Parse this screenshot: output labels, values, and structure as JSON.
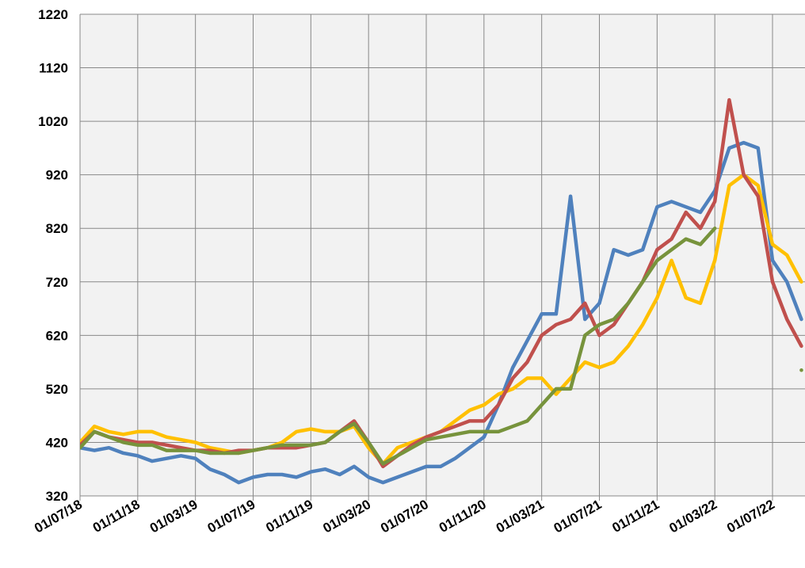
{
  "chart_data": {
    "type": "line",
    "x": [
      "01/07/18",
      "01/08/18",
      "01/09/18",
      "01/10/18",
      "01/11/18",
      "01/12/18",
      "01/01/19",
      "01/02/19",
      "01/03/19",
      "01/04/19",
      "01/05/19",
      "01/06/19",
      "01/07/19",
      "01/08/19",
      "01/09/19",
      "01/10/19",
      "01/11/19",
      "01/12/19",
      "01/01/20",
      "01/02/20",
      "01/03/20",
      "01/04/20",
      "01/05/20",
      "01/06/20",
      "01/07/20",
      "01/08/20",
      "01/09/20",
      "01/10/20",
      "01/11/20",
      "01/12/20",
      "01/01/21",
      "01/02/21",
      "01/03/21",
      "01/04/21",
      "01/05/21",
      "01/06/21",
      "01/07/21",
      "01/08/21",
      "01/09/21",
      "01/10/21",
      "01/11/21",
      "01/12/21",
      "01/01/22",
      "01/02/22",
      "01/03/22",
      "01/04/22",
      "01/05/22",
      "01/06/22",
      "01/07/22",
      "01/08/22",
      "01/09/22"
    ],
    "xticks": [
      "01/07/18",
      "01/11/18",
      "01/03/19",
      "01/07/19",
      "01/11/19",
      "01/03/20",
      "01/07/20",
      "01/11/20",
      "01/03/21",
      "01/07/21",
      "01/11/21",
      "01/03/22",
      "01/07/22"
    ],
    "ylim": [
      320,
      1220
    ],
    "yticks": [
      320,
      420,
      520,
      620,
      720,
      820,
      920,
      1020,
      1120,
      1220
    ],
    "grid": true,
    "series": [
      {
        "color": "#4f81bd",
        "values": [
          410,
          405,
          410,
          400,
          395,
          385,
          390,
          395,
          390,
          370,
          360,
          345,
          355,
          360,
          360,
          355,
          365,
          370,
          360,
          375,
          355,
          345,
          355,
          365,
          375,
          375,
          390,
          410,
          430,
          490,
          560,
          610,
          660,
          660,
          880,
          650,
          680,
          780,
          770,
          780,
          860,
          870,
          860,
          850,
          890,
          970,
          980,
          970,
          760,
          720,
          650
        ]
      },
      {
        "color": "#ffc000",
        "values": [
          420,
          450,
          440,
          435,
          440,
          440,
          430,
          425,
          420,
          410,
          405,
          400,
          405,
          410,
          420,
          440,
          445,
          440,
          440,
          450,
          410,
          380,
          410,
          420,
          430,
          440,
          460,
          480,
          490,
          510,
          520,
          540,
          540,
          510,
          540,
          570,
          560,
          570,
          600,
          640,
          690,
          760,
          690,
          680,
          760,
          900,
          920,
          900,
          790,
          770,
          720
        ]
      },
      {
        "color": "#c0504d",
        "values": [
          415,
          440,
          430,
          425,
          420,
          420,
          415,
          410,
          405,
          405,
          400,
          405,
          405,
          410,
          410,
          410,
          415,
          420,
          440,
          460,
          420,
          375,
          395,
          415,
          430,
          440,
          450,
          460,
          460,
          490,
          540,
          570,
          620,
          640,
          650,
          680,
          620,
          640,
          680,
          720,
          780,
          800,
          850,
          820,
          870,
          1060,
          920,
          880,
          720,
          650,
          600
        ]
      },
      {
        "color": "#77933c",
        "values": [
          410,
          440,
          430,
          420,
          415,
          415,
          405,
          405,
          405,
          400,
          400,
          400,
          405,
          410,
          415,
          415,
          415,
          420,
          440,
          455,
          420,
          380,
          395,
          410,
          425,
          430,
          435,
          440,
          440,
          440,
          450,
          460,
          490,
          520,
          520,
          620,
          640,
          650,
          680,
          720,
          760,
          780,
          800,
          790,
          820,
          null,
          null,
          null,
          null,
          null,
          555
        ]
      }
    ]
  }
}
